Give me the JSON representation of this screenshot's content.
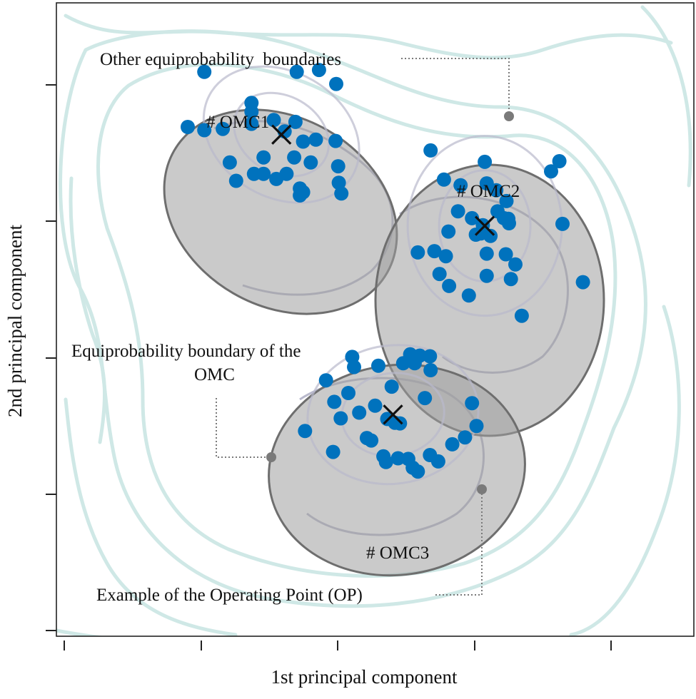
{
  "chart_data": {
    "type": "scatter",
    "title": "",
    "xlabel": "1st principal component",
    "ylabel": "2nd principal component",
    "xlim": [
      0,
      100
    ],
    "ylim": [
      0,
      100
    ],
    "grid": false,
    "colors": {
      "points": "#0072bd",
      "ellipse_fill": "#9e9e9e",
      "ellipse_stroke": "#6e6e6e",
      "outer_contour": "#cfe8e6",
      "inner_contour": "#b9b9cc",
      "annotation": "#7a7a7a",
      "centroid_marker": "#111111"
    },
    "clusters": [
      {
        "name": "# OMC1",
        "centroid": [
          35.3,
          79.2
        ],
        "points": [
          [
            23.2,
            89.1
          ],
          [
            37.7,
            89.1
          ],
          [
            41.2,
            89.4
          ],
          [
            43.9,
            87.2
          ],
          [
            30.6,
            84.2
          ],
          [
            30.6,
            82.8
          ],
          [
            20.6,
            80.4
          ],
          [
            23.2,
            79.9
          ],
          [
            26.1,
            80.1
          ],
          [
            30.6,
            80.9
          ],
          [
            34.1,
            81.5
          ],
          [
            37.5,
            81.2
          ],
          [
            35.8,
            79.7
          ],
          [
            38.7,
            78.1
          ],
          [
            40.7,
            78.4
          ],
          [
            43.8,
            78.2
          ],
          [
            32.5,
            75.6
          ],
          [
            37.3,
            75.6
          ],
          [
            27.2,
            74.8
          ],
          [
            39.9,
            74.8
          ],
          [
            44.2,
            74.2
          ],
          [
            31.0,
            73.0
          ],
          [
            32.5,
            73.0
          ],
          [
            36.1,
            73.0
          ],
          [
            34.5,
            72.2
          ],
          [
            28.2,
            71.9
          ],
          [
            44.3,
            71.6
          ],
          [
            38.2,
            70.7
          ],
          [
            38.7,
            70.1
          ],
          [
            38.2,
            69.6
          ],
          [
            44.7,
            69.9
          ]
        ]
      },
      {
        "name": "# OMC2",
        "centroid": [
          67.2,
          64.8
        ],
        "points": [
          [
            58.7,
            76.7
          ],
          [
            67.2,
            74.9
          ],
          [
            78.9,
            75.0
          ],
          [
            60.8,
            72.1
          ],
          [
            77.6,
            73.4
          ],
          [
            63.4,
            71.2
          ],
          [
            67.5,
            71.5
          ],
          [
            69.0,
            70.4
          ],
          [
            70.6,
            68.7
          ],
          [
            63.0,
            67.1
          ],
          [
            65.2,
            66.0
          ],
          [
            69.2,
            67.1
          ],
          [
            70.2,
            66.0
          ],
          [
            71.0,
            65.2
          ],
          [
            70.9,
            65.9
          ],
          [
            79.4,
            65.1
          ],
          [
            66.9,
            64.9
          ],
          [
            68.1,
            63.2
          ],
          [
            65.8,
            63.4
          ],
          [
            61.5,
            63.9
          ],
          [
            66.6,
            63.6
          ],
          [
            59.3,
            60.8
          ],
          [
            56.7,
            60.6
          ],
          [
            61.1,
            60.0
          ],
          [
            67.5,
            60.4
          ],
          [
            70.5,
            60.3
          ],
          [
            72.0,
            58.7
          ],
          [
            60.1,
            57.2
          ],
          [
            67.5,
            56.9
          ],
          [
            71.3,
            56.4
          ],
          [
            82.6,
            55.9
          ],
          [
            61.6,
            55.3
          ],
          [
            64.7,
            53.8
          ],
          [
            73.0,
            50.6
          ]
        ]
      },
      {
        "name": "# OMC3",
        "centroid": [
          52.8,
          35.0
        ],
        "points": [
          [
            46.4,
            44.1
          ],
          [
            55.5,
            44.5
          ],
          [
            57.0,
            44.3
          ],
          [
            58.6,
            44.2
          ],
          [
            54.4,
            43.1
          ],
          [
            56.2,
            43.1
          ],
          [
            46.7,
            42.5
          ],
          [
            50.5,
            42.7
          ],
          [
            58.7,
            42.0
          ],
          [
            42.3,
            40.4
          ],
          [
            52.6,
            39.4
          ],
          [
            45.8,
            38.4
          ],
          [
            57.8,
            37.6
          ],
          [
            43.6,
            37.0
          ],
          [
            50.0,
            36.4
          ],
          [
            65.2,
            36.8
          ],
          [
            47.5,
            35.3
          ],
          [
            44.6,
            34.4
          ],
          [
            51.9,
            34.3
          ],
          [
            53.1,
            33.7
          ],
          [
            53.9,
            33.6
          ],
          [
            65.9,
            33.2
          ],
          [
            39.0,
            32.4
          ],
          [
            48.7,
            31.3
          ],
          [
            49.4,
            30.9
          ],
          [
            64.1,
            31.4
          ],
          [
            62.1,
            30.3
          ],
          [
            43.4,
            29.1
          ],
          [
            51.3,
            28.4
          ],
          [
            53.6,
            28.1
          ],
          [
            58.6,
            28.6
          ],
          [
            55.2,
            28.0
          ],
          [
            59.9,
            27.6
          ],
          [
            51.7,
            27.5
          ],
          [
            55.9,
            26.6
          ],
          [
            56.7,
            26.0
          ]
        ]
      }
    ],
    "annotations": {
      "other_boundaries": "Other equiprobability  boundaries",
      "omc_boundary_line1": "Equiprobability boundary of the",
      "omc_boundary_line2": "OMC",
      "operating_point": "Example of the Operating Point (OP)"
    }
  }
}
